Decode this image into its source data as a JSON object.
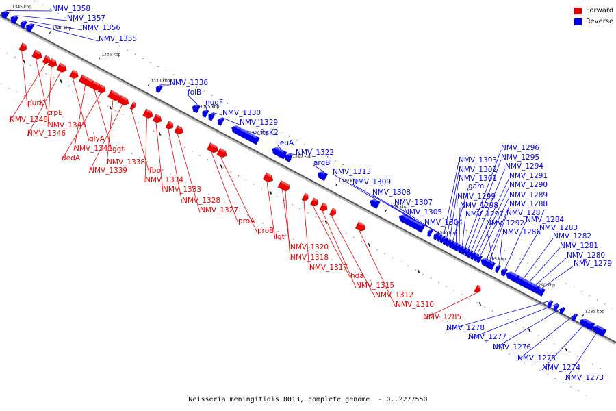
{
  "diagram": {
    "caption": "Neisseria meningitidis 8013, complete genome. - 0..2277550",
    "legend": [
      {
        "label": "Forward",
        "color": "#ee0000"
      },
      {
        "label": "Reverse",
        "color": "#0000ee"
      }
    ],
    "ticks": [
      "1345 kbp",
      "1340 kbp",
      "1335 kbp",
      "1330 kbp",
      "1325 kbp",
      "1320 kbp",
      "1315 kbp",
      "1310 kbp",
      "1305 kbp",
      "1300 kbp",
      "1295 kbp",
      "1290 kbp",
      "1285 kbp"
    ],
    "forward_genes": [
      "purK",
      "trpE",
      "NMV_1348",
      "NMV_1345",
      "NMV_1346",
      "glyA",
      "NMV_1341",
      "ggt",
      "dedA",
      "NMV_1338",
      "NMV_1339",
      "fbp",
      "NMV_1334",
      "NMV_1333",
      "NMV_1328",
      "NMV_1327",
      "proA",
      "proB",
      "lgt",
      "NMV_1320",
      "NMV_1318",
      "NMV_1317",
      "hda",
      "NMV_1315",
      "NMV_1312",
      "NMV_1310",
      "NMV_1285"
    ],
    "reverse_genes": [
      "NMV_1358",
      "NMV_1357",
      "NMV_1356",
      "NMV_1355",
      "NMV_1336",
      "folB",
      "nudF",
      "NMV_1330",
      "NMV_1329",
      "ftsK2",
      "leuA",
      "NMV_1322",
      "argB",
      "NMV_1313",
      "NMV_1309",
      "NMV_1308",
      "NMV_1307",
      "NMV_1305",
      "NMV_1304",
      "NMV_1303",
      "NMV_1302",
      "NMV_1301",
      "gam",
      "NMV_1299",
      "NMV_1298",
      "NMV_1297",
      "NMV_1296",
      "NMV_1295",
      "NMV_1294",
      "NMV_1291",
      "NMV_1290",
      "NMV_1289",
      "NMV_1288",
      "NMV_1287",
      "NMV_1292",
      "NMV_1286",
      "NMV_1284",
      "NMV_1283",
      "NMV_1282",
      "NMV_1281",
      "NMV_1280",
      "NMV_1279",
      "NMV_1278",
      "NMV_1277",
      "NMV_1276",
      "NMV_1275",
      "NMV_1274",
      "NMV_1273"
    ]
  }
}
